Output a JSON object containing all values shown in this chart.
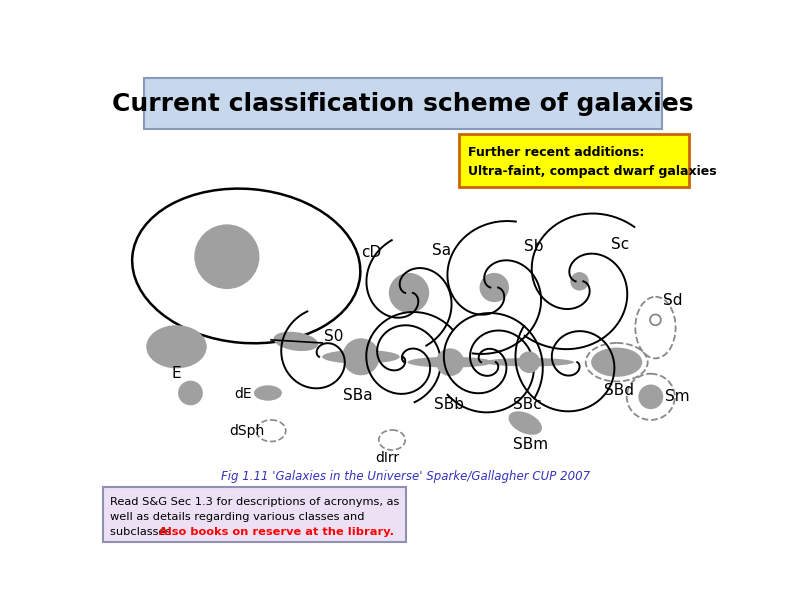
{
  "title": "Current classification scheme of galaxies",
  "title_bg": "#c8d8ec",
  "title_border": "#8899bb",
  "title_fontsize": 18,
  "yellow_box_text1": "Further recent additions:",
  "yellow_box_text2": "Ultra-faint, compact dwarf galaxies",
  "yellow_box_bg": "#ffff00",
  "yellow_box_border": "#cc6600",
  "bottom_text1": "Read S&G Sec 1.3 for descriptions of acronyms, as",
  "bottom_text2": "well as details regarding various classes and",
  "bottom_text3_black": "subclasses. ",
  "bottom_text3_red": "Also books on reserve at the library.",
  "bottom_box_bg": "#ece0f4",
  "bottom_box_border": "#9090b0",
  "fig_caption": "Fig 1.11 'Galaxies in the Universe' Sparke/Gallagher CUP 2007",
  "fig_caption_color": "#3333bb",
  "bg_color": "#ffffff",
  "galaxy_gray": "#a0a0a0",
  "black": "#000000",
  "dashed_color": "#888888"
}
